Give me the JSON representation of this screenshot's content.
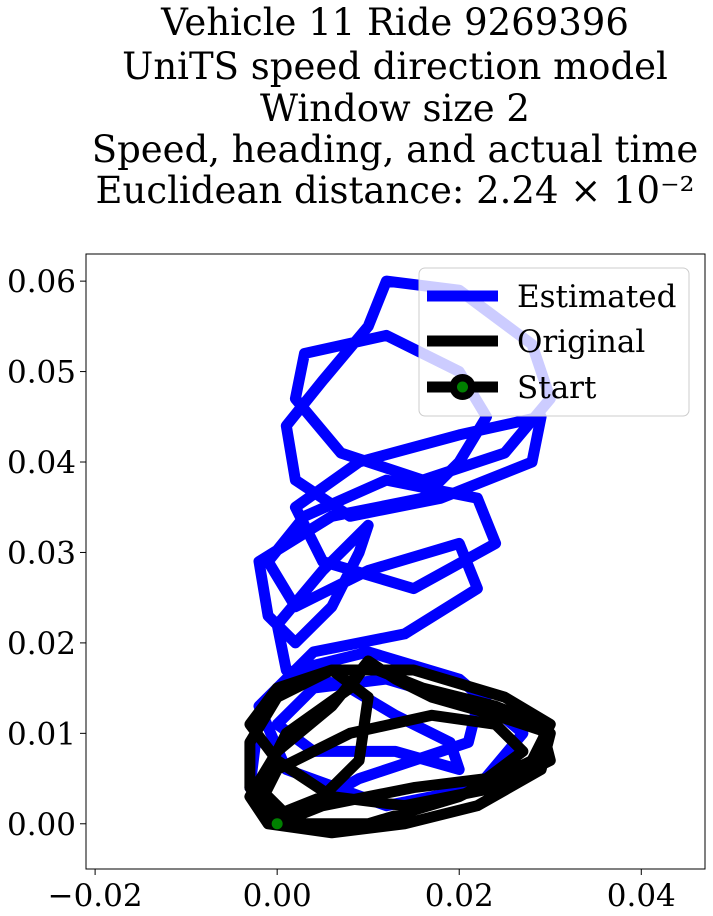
{
  "chart_data": {
    "type": "line",
    "title_lines": [
      "Vehicle 11 Ride 9269396",
      "UniTS speed direction model",
      "Window size 2",
      "Speed, heading, and actual time",
      "Euclidean distance: 2.24 × 10⁻²"
    ],
    "xlabel": "",
    "ylabel": "",
    "xlim": [
      -0.021,
      0.047
    ],
    "ylim": [
      -0.005,
      0.063
    ],
    "xticks": [
      -0.02,
      0.0,
      0.02,
      0.04
    ],
    "xtick_labels": [
      "−0.02",
      "0.00",
      "0.02",
      "0.04"
    ],
    "yticks": [
      0.0,
      0.01,
      0.02,
      0.03,
      0.04,
      0.05,
      0.06
    ],
    "ytick_labels": [
      "0.00",
      "0.01",
      "0.02",
      "0.03",
      "0.04",
      "0.05",
      "0.06"
    ],
    "grid": false,
    "legend_position": "top-right",
    "series": [
      {
        "name": "Estimated",
        "color": "#0000ff",
        "x": [
          0.0,
          -0.003,
          -0.002,
          0.002,
          0.01,
          0.02,
          0.027,
          0.022,
          0.012,
          0.001,
          -0.002,
          0.004,
          0.014,
          0.022,
          0.02,
          0.01,
          0.002,
          -0.001,
          0.003,
          0.012,
          0.022,
          0.024,
          0.015,
          0.005,
          0.002,
          0.009,
          0.02,
          0.029,
          0.028,
          0.018,
          0.008,
          0.002,
          0.001,
          0.005,
          0.01,
          0.012,
          0.02,
          0.028,
          0.03,
          0.025,
          0.016,
          0.007,
          0.002,
          0.003,
          0.012,
          0.02,
          0.023,
          0.02,
          0.016,
          0.006,
          -0.002,
          -0.001,
          0.002,
          0.006,
          0.009,
          0.01,
          0.005,
          0.0,
          0.001,
          0.008,
          0.013,
          0.019,
          0.02,
          0.013,
          0.004,
          0.0,
          0.004,
          0.012,
          0.022,
          0.021,
          0.009,
          0.0
        ],
        "y": [
          0.0,
          0.004,
          0.012,
          0.017,
          0.019,
          0.016,
          0.01,
          0.004,
          0.002,
          0.006,
          0.013,
          0.019,
          0.021,
          0.026,
          0.031,
          0.028,
          0.024,
          0.029,
          0.034,
          0.038,
          0.036,
          0.031,
          0.026,
          0.029,
          0.035,
          0.04,
          0.043,
          0.045,
          0.04,
          0.036,
          0.034,
          0.038,
          0.044,
          0.049,
          0.055,
          0.06,
          0.059,
          0.053,
          0.047,
          0.041,
          0.038,
          0.041,
          0.047,
          0.052,
          0.054,
          0.05,
          0.045,
          0.04,
          0.036,
          0.034,
          0.029,
          0.023,
          0.02,
          0.024,
          0.03,
          0.033,
          0.028,
          0.022,
          0.017,
          0.015,
          0.012,
          0.009,
          0.006,
          0.008,
          0.008,
          0.011,
          0.015,
          0.016,
          0.013,
          0.009,
          0.005,
          0.0
        ]
      },
      {
        "name": "Original",
        "color": "#000000",
        "x": [
          0.0,
          -0.003,
          -0.003,
          0.0,
          0.006,
          0.015,
          0.025,
          0.03,
          0.028,
          0.02,
          0.01,
          0.002,
          -0.002,
          0.001,
          0.008,
          0.01,
          0.006,
          0.0,
          -0.003,
          -0.001,
          0.006,
          0.014,
          0.022,
          0.029,
          0.03,
          0.024,
          0.017,
          0.013,
          0.01,
          0.011,
          0.016,
          0.024,
          0.029,
          0.03,
          0.024,
          0.014,
          0.006,
          0.0,
          -0.003,
          0.0,
          0.006,
          0.01,
          0.009,
          0.005,
          0.0,
          -0.002,
          0.0,
          0.008,
          0.017,
          0.024,
          0.027,
          0.023,
          0.015,
          0.005,
          0.0
        ],
        "y": [
          0.0,
          0.004,
          0.009,
          0.014,
          0.017,
          0.017,
          0.014,
          0.011,
          0.007,
          0.003,
          0.0,
          0.0,
          0.004,
          0.01,
          0.015,
          0.018,
          0.013,
          0.008,
          0.003,
          0.0,
          -0.001,
          0.0,
          0.002,
          0.006,
          0.01,
          0.012,
          0.014,
          0.016,
          0.018,
          0.017,
          0.015,
          0.013,
          0.011,
          0.007,
          0.004,
          0.002,
          0.003,
          0.007,
          0.011,
          0.015,
          0.017,
          0.014,
          0.007,
          0.003,
          0.001,
          0.002,
          0.006,
          0.01,
          0.012,
          0.011,
          0.008,
          0.005,
          0.004,
          0.002,
          0.0
        ]
      }
    ],
    "start_marker": {
      "name": "Start",
      "x": 0.0,
      "y": 0.0,
      "color": "#008000",
      "edge_color": "#000000"
    },
    "legend_entries": [
      "Estimated",
      "Original",
      "Start"
    ]
  }
}
